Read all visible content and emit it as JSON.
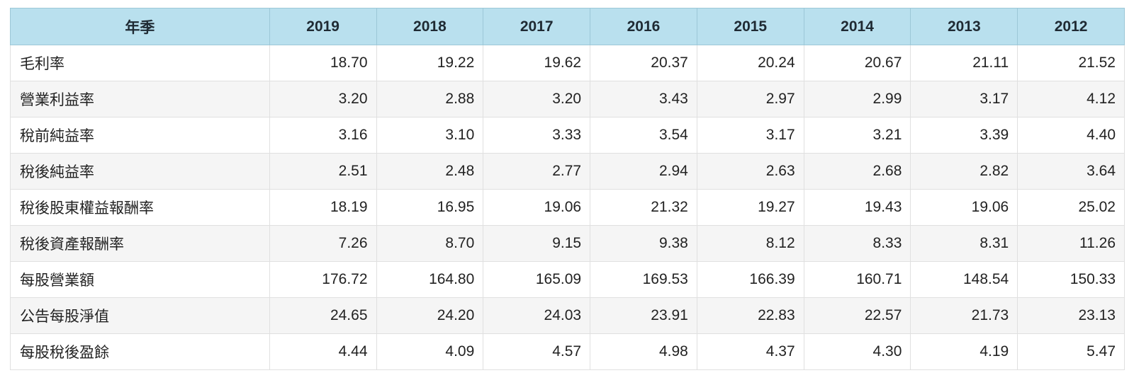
{
  "table": {
    "corner_label": "年季",
    "years": [
      "2019",
      "2018",
      "2017",
      "2016",
      "2015",
      "2014",
      "2013",
      "2012"
    ],
    "rows": [
      {
        "label": "毛利率",
        "values": [
          "18.70",
          "19.22",
          "19.62",
          "20.37",
          "20.24",
          "20.67",
          "21.11",
          "21.52"
        ]
      },
      {
        "label": "營業利益率",
        "values": [
          "3.20",
          "2.88",
          "3.20",
          "3.43",
          "2.97",
          "2.99",
          "3.17",
          "4.12"
        ]
      },
      {
        "label": "稅前純益率",
        "values": [
          "3.16",
          "3.10",
          "3.33",
          "3.54",
          "3.17",
          "3.21",
          "3.39",
          "4.40"
        ]
      },
      {
        "label": "稅後純益率",
        "values": [
          "2.51",
          "2.48",
          "2.77",
          "2.94",
          "2.63",
          "2.68",
          "2.82",
          "3.64"
        ]
      },
      {
        "label": "稅後股東權益報酬率",
        "values": [
          "18.19",
          "16.95",
          "19.06",
          "21.32",
          "19.27",
          "19.43",
          "19.06",
          "25.02"
        ]
      },
      {
        "label": "稅後資產報酬率",
        "values": [
          "7.26",
          "8.70",
          "9.15",
          "9.38",
          "8.12",
          "8.33",
          "8.31",
          "11.26"
        ]
      },
      {
        "label": "每股營業額",
        "values": [
          "176.72",
          "164.80",
          "165.09",
          "169.53",
          "166.39",
          "160.71",
          "148.54",
          "150.33"
        ]
      },
      {
        "label": "公告每股淨值",
        "values": [
          "24.65",
          "24.20",
          "24.03",
          "23.91",
          "22.83",
          "22.57",
          "21.73",
          "23.13"
        ]
      },
      {
        "label": "每股稅後盈餘",
        "values": [
          "4.44",
          "4.09",
          "4.57",
          "4.98",
          "4.37",
          "4.30",
          "4.19",
          "5.47"
        ]
      }
    ]
  },
  "colors": {
    "header_bg": "#b9e0ee",
    "row_alt_bg": "#f5f5f5",
    "border": "#e0e0e0"
  }
}
